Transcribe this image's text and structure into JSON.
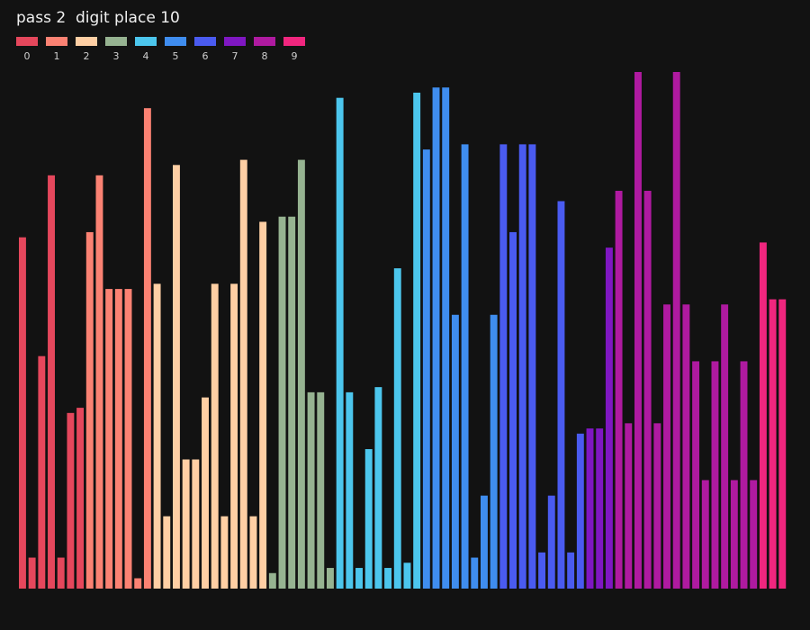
{
  "title": "pass 2  digit place 10",
  "legend": [
    {
      "label": "0",
      "color": "#e5475c"
    },
    {
      "label": "1",
      "color": "#fb8273"
    },
    {
      "label": "2",
      "color": "#ffcfa4"
    },
    {
      "label": "3",
      "color": "#96b391"
    },
    {
      "label": "4",
      "color": "#4cc6ed"
    },
    {
      "label": "5",
      "color": "#3f8def"
    },
    {
      "label": "6",
      "color": "#4a5bf0"
    },
    {
      "label": "7",
      "color": "#7f17c2"
    },
    {
      "label": "8",
      "color": "#af1aa0"
    },
    {
      "label": "9",
      "color": "#f0267e"
    }
  ],
  "chart_data": {
    "type": "bar",
    "title": "pass 2  digit place 10",
    "ylim": [
      0,
      100
    ],
    "series": [
      {
        "name": "0",
        "values": [
          68,
          6,
          45,
          80,
          6,
          34,
          35
        ]
      },
      {
        "name": "1",
        "values": [
          69,
          80,
          58,
          58,
          58,
          2,
          93
        ]
      },
      {
        "name": "2",
        "values": [
          59,
          14,
          82,
          25,
          25,
          37,
          59,
          14,
          59,
          83,
          14,
          71
        ]
      },
      {
        "name": "3",
        "values": [
          3,
          72,
          72,
          83,
          38,
          38,
          4
        ]
      },
      {
        "name": "4",
        "values": [
          95,
          38,
          4,
          27,
          39,
          4,
          62,
          5,
          96
        ]
      },
      {
        "name": "5",
        "values": [
          85,
          97,
          97,
          53,
          86,
          6,
          18,
          53
        ]
      },
      {
        "name": "6",
        "values": [
          86,
          69,
          86,
          86,
          7,
          18,
          75,
          7,
          30
        ]
      },
      {
        "name": "7",
        "values": [
          31,
          31,
          66
        ]
      },
      {
        "name": "8",
        "values": [
          77,
          32,
          100,
          77,
          32,
          55,
          100,
          55,
          44,
          21,
          44,
          55,
          21,
          44,
          21
        ]
      },
      {
        "name": "9",
        "values": [
          67,
          56,
          56
        ]
      }
    ]
  }
}
